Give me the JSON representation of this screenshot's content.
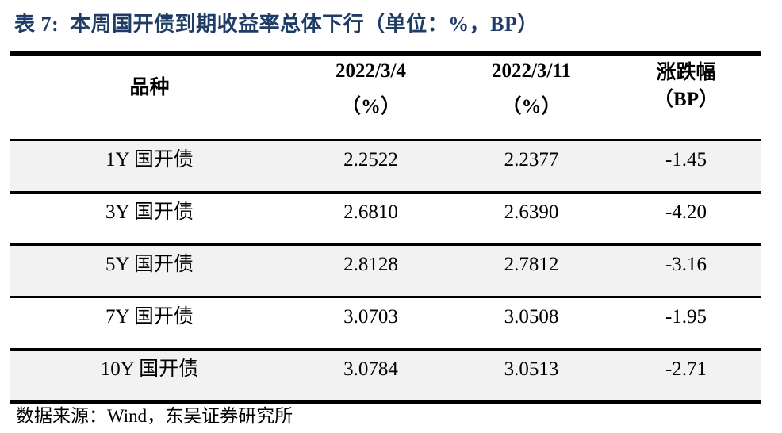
{
  "title": "表 7:  本周国开债到期收益率总体下行（单位：%，BP）",
  "table": {
    "header": {
      "variety": "品种",
      "prev_date": "2022/3/4",
      "prev_unit": "（%）",
      "curr_date": "2022/3/11",
      "curr_unit": "（%）",
      "change_label": "涨跌幅",
      "change_unit": "（BP）"
    },
    "rows": [
      {
        "label": "1Y 国开债",
        "prev": "2.2522",
        "curr": "2.2377",
        "chg": "-1.45"
      },
      {
        "label": "3Y 国开债",
        "prev": "2.6810",
        "curr": "2.6390",
        "chg": "-4.20"
      },
      {
        "label": "5Y 国开债",
        "prev": "2.8128",
        "curr": "2.7812",
        "chg": "-3.16"
      },
      {
        "label": "7Y 国开债",
        "prev": "3.0703",
        "curr": "3.0508",
        "chg": "-1.95"
      },
      {
        "label": "10Y 国开债",
        "prev": "3.0784",
        "curr": "3.0513",
        "chg": "-2.71"
      }
    ]
  },
  "source_note": "数据来源：Wind，东吴证券研究所",
  "colors": {
    "title_text": "#1f3c66",
    "row_alt": "#f2f2f2",
    "rule": "#000000"
  }
}
